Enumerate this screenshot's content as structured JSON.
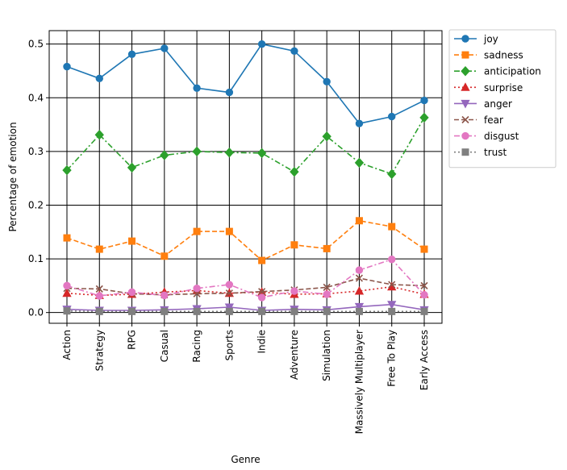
{
  "chart_data": {
    "type": "line",
    "title": "",
    "xlabel": "Genre",
    "ylabel": "Percentage of emotion",
    "ylim": [
      -0.02,
      0.525
    ],
    "yticks": [
      0.0,
      0.1,
      0.2,
      0.3,
      0.4,
      0.5
    ],
    "ytick_labels": [
      "0.0",
      "0.1",
      "0.2",
      "0.3",
      "0.4",
      "0.5"
    ],
    "grid": true,
    "legend_position": "outside-top-right",
    "categories": [
      "Action",
      "Strategy",
      "RPG",
      "Casual",
      "Racing",
      "Sports",
      "Indie",
      "Adventure",
      "Simulation",
      "Massively Multiplayer",
      "Free To Play",
      "Early Access"
    ],
    "series": [
      {
        "name": "joy",
        "color": "#1f77b4",
        "dash": "solid",
        "marker": "circle",
        "values": [
          0.458,
          0.436,
          0.481,
          0.492,
          0.418,
          0.41,
          0.5,
          0.487,
          0.43,
          0.352,
          0.365,
          0.395
        ]
      },
      {
        "name": "sadness",
        "color": "#ff7f0e",
        "dash": "dashed",
        "marker": "square",
        "values": [
          0.139,
          0.118,
          0.133,
          0.105,
          0.151,
          0.151,
          0.097,
          0.126,
          0.119,
          0.171,
          0.16,
          0.118
        ]
      },
      {
        "name": "anticipation",
        "color": "#2ca02c",
        "dash": "dashdot",
        "marker": "diamond",
        "values": [
          0.265,
          0.331,
          0.27,
          0.293,
          0.3,
          0.298,
          0.297,
          0.262,
          0.328,
          0.279,
          0.258,
          0.363
        ]
      },
      {
        "name": "surprise",
        "color": "#d62728",
        "dash": "dotted",
        "marker": "triangle-up",
        "values": [
          0.036,
          0.032,
          0.034,
          0.038,
          0.041,
          0.036,
          0.038,
          0.034,
          0.035,
          0.04,
          0.048,
          0.034
        ]
      },
      {
        "name": "anger",
        "color": "#9467bd",
        "dash": "solid",
        "marker": "triangle-down",
        "values": [
          0.006,
          0.004,
          0.004,
          0.005,
          0.007,
          0.01,
          0.004,
          0.006,
          0.005,
          0.011,
          0.015,
          0.005
        ]
      },
      {
        "name": "fear",
        "color": "#8c564b",
        "dash": "dashed",
        "marker": "x",
        "values": [
          0.045,
          0.044,
          0.035,
          0.033,
          0.035,
          0.036,
          0.039,
          0.042,
          0.047,
          0.064,
          0.052,
          0.05
        ]
      },
      {
        "name": "disgust",
        "color": "#e377c2",
        "dash": "dashdot",
        "marker": "circle",
        "values": [
          0.05,
          0.031,
          0.038,
          0.032,
          0.045,
          0.052,
          0.028,
          0.04,
          0.034,
          0.079,
          0.099,
          0.033
        ]
      },
      {
        "name": "trust",
        "color": "#7f7f7f",
        "dash": "dotted",
        "marker": "square",
        "values": [
          0.003,
          0.002,
          0.002,
          0.002,
          0.002,
          0.002,
          0.002,
          0.002,
          0.002,
          0.002,
          0.002,
          0.002
        ]
      }
    ]
  }
}
